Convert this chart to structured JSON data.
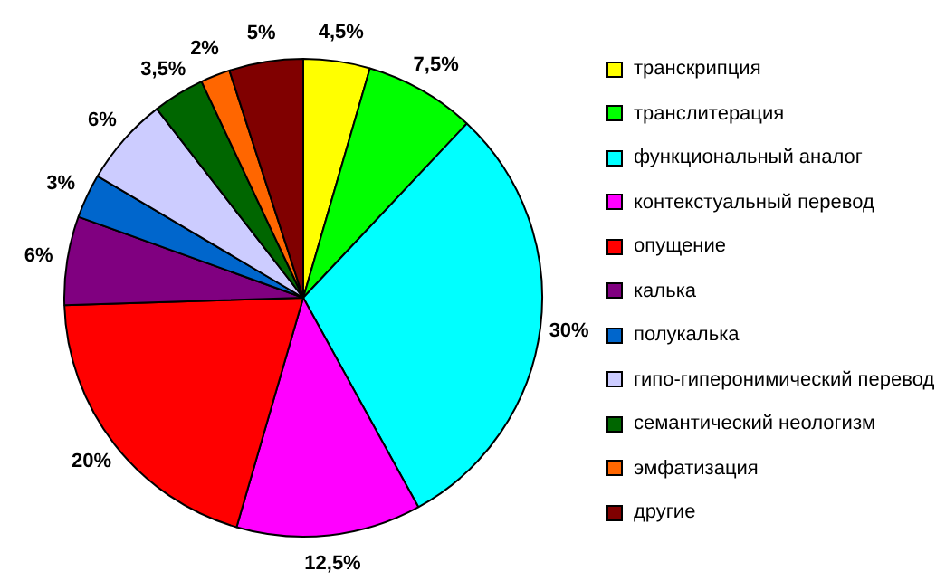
{
  "chart_data": {
    "type": "pie",
    "categories": [
      "транскрипция",
      "транслитерация",
      "функциональный аналог",
      "контекстуальный перевод",
      "опущение",
      "калька",
      "полукалька",
      "гипо-гиперонимический перевод",
      "семантический неологизм",
      "эмфатизация",
      "другие"
    ],
    "values": [
      4.5,
      7.5,
      30,
      12.5,
      20,
      6,
      3,
      6,
      3.5,
      2,
      5
    ],
    "value_labels": [
      "4,5%",
      "7,5%",
      "30%",
      "12,5%",
      "20%",
      "6%",
      "3%",
      "6%",
      "3,5%",
      "2%",
      "5%"
    ],
    "colors": [
      "#ffff00",
      "#00ff00",
      "#00ffff",
      "#ff00ff",
      "#ff0000",
      "#800080",
      "#0066cc",
      "#ccccff",
      "#006600",
      "#ff6600",
      "#800000"
    ],
    "legend": "right"
  }
}
